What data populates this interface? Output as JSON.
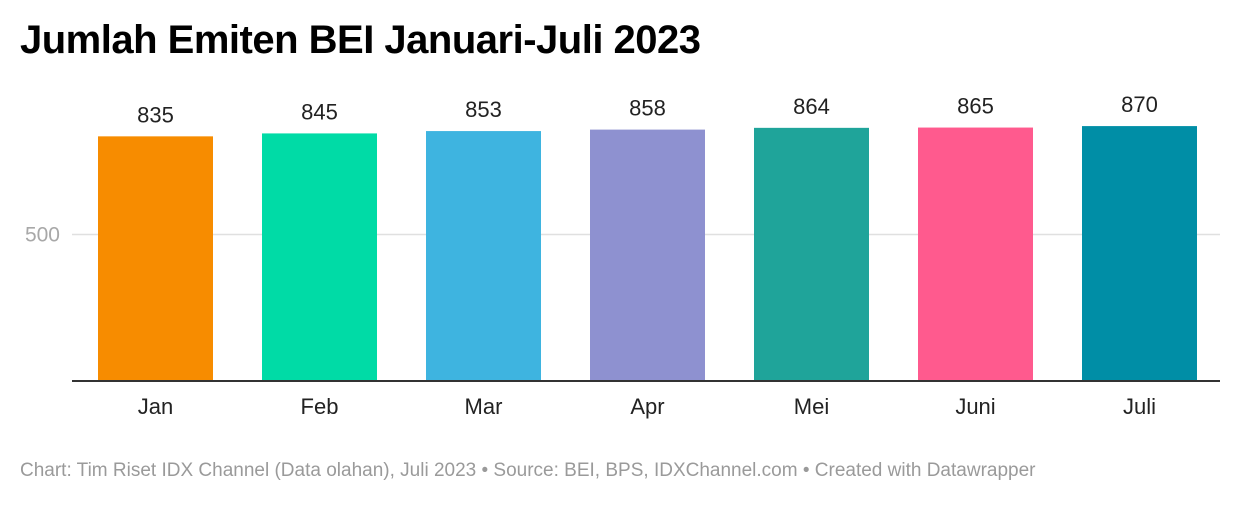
{
  "chart_data": {
    "type": "bar",
    "title": "Jumlah Emiten BEI Januari-Juli 2023",
    "categories": [
      "Jan",
      "Feb",
      "Mar",
      "Apr",
      "Mei",
      "Juni",
      "Juli"
    ],
    "values": [
      835,
      845,
      853,
      858,
      864,
      865,
      870
    ],
    "colors": [
      "#f78c00",
      "#00dba6",
      "#3eb4e0",
      "#8e91d0",
      "#1fa49a",
      "#ff5a8e",
      "#008ea6"
    ],
    "yticks": [
      500
    ],
    "ylim": [
      0,
      1000
    ],
    "xlabel": "",
    "ylabel": "",
    "grid": true,
    "gridline_color": "#e0e0e0",
    "axis_color": "#333333",
    "tick_label_color": "#a8a8a8"
  },
  "footer": {
    "text": "Chart: Tim Riset IDX Channel (Data olahan), Juli 2023 • Source: BEI, BPS, IDXChannel.com • Created with Datawrapper"
  }
}
